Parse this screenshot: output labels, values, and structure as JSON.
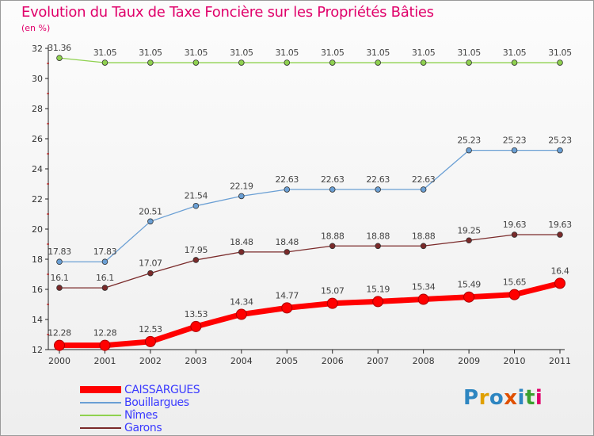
{
  "header": {
    "title": "Evolution du Taux de Taxe Foncière sur les Propriétés Bâties",
    "unit": "(en %)"
  },
  "logo": {
    "text": "Proxiti",
    "colors": [
      "#2e86c1",
      "#e0a000",
      "#2e86c1",
      "#e05000",
      "#2e86c1",
      "#3aa02e",
      "#e0006a"
    ]
  },
  "chart_data": {
    "type": "line",
    "title": "Evolution du Taux de Taxe Foncière sur les Propriétés Bâties",
    "ylabel": "(en %)",
    "xlabel": "",
    "categories": [
      "2000",
      "2001",
      "2002",
      "2003",
      "2004",
      "2005",
      "2006",
      "2007",
      "2008",
      "2009",
      "2010",
      "2011"
    ],
    "ylim": [
      12,
      32
    ],
    "yticks": [
      12,
      14,
      16,
      18,
      20,
      22,
      24,
      26,
      28,
      30,
      32
    ],
    "grid": false,
    "legend": "bottom-left",
    "series": [
      {
        "name": "CAISSARGUES",
        "color": "#ff0000",
        "emphasis": true,
        "values": [
          12.28,
          12.28,
          12.53,
          13.53,
          14.34,
          14.77,
          15.07,
          15.19,
          15.34,
          15.49,
          15.65,
          16.4
        ],
        "labels": [
          "12.28",
          "12.28",
          "12.53",
          "13.53",
          "14.34",
          "14.77",
          "15.07",
          "15.19",
          "15.34",
          "15.49",
          "15.65",
          "16.4"
        ]
      },
      {
        "name": "Bouillargues",
        "color": "#6a9fd4",
        "emphasis": false,
        "values": [
          17.83,
          17.83,
          20.51,
          21.54,
          22.19,
          22.63,
          22.63,
          22.63,
          22.63,
          25.23,
          25.23,
          25.23
        ],
        "labels": [
          "17.83",
          "17.83",
          "20.51",
          "21.54",
          "22.19",
          "22.63",
          "22.63",
          "22.63",
          "22.63",
          "25.23",
          "25.23",
          "25.23"
        ]
      },
      {
        "name": "Nîmes",
        "color": "#8fd14f",
        "emphasis": false,
        "values": [
          31.36,
          31.05,
          31.05,
          31.05,
          31.05,
          31.05,
          31.05,
          31.05,
          31.05,
          31.05,
          31.05,
          31.05
        ],
        "labels": [
          "31.36",
          "31.05",
          "31.05",
          "31.05",
          "31.05",
          "31.05",
          "31.05",
          "31.05",
          "31.05",
          "31.05",
          "31.05",
          "31.05"
        ]
      },
      {
        "name": "Garons",
        "color": "#7a2a2a",
        "emphasis": false,
        "values": [
          16.1,
          16.1,
          17.07,
          17.95,
          18.48,
          18.48,
          18.88,
          18.88,
          18.88,
          19.25,
          19.63,
          19.63
        ],
        "labels": [
          "16.1",
          "16.1",
          "17.07",
          "17.95",
          "18.48",
          "18.48",
          "18.88",
          "18.88",
          "18.88",
          "19.25",
          "19.63",
          "19.63"
        ]
      }
    ]
  }
}
